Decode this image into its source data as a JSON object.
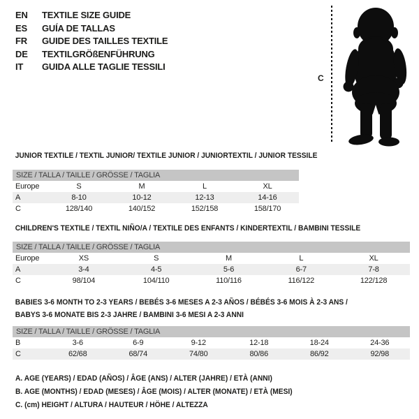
{
  "colors": {
    "background": "#ffffff",
    "text": "#1d1d1b",
    "header_bar_bg": "#c5c5c5",
    "header_bar_text": "#3e3e3e",
    "shaded_row_bg": "#eeeeee",
    "silhouette": "#0d0d0d"
  },
  "languages": [
    {
      "code": "EN",
      "label": "TEXTILE SIZE GUIDE"
    },
    {
      "code": "ES",
      "label": "GUÍA DE TALLAS"
    },
    {
      "code": "FR",
      "label": "GUIDE DES TAILLES TEXTILE"
    },
    {
      "code": "DE",
      "label": "TEXTILGRÖßENFÜHRUNG"
    },
    {
      "code": "IT",
      "label": "GUIDA ALLE TAGLIE TESSILI"
    }
  ],
  "figure": {
    "measure_label": "C"
  },
  "sections": [
    {
      "title_lines": [
        "JUNIOR TEXTILE / TEXTIL JUNIOR/ TEXTILE JUNIOR / JUNIORTEXTIL / JUNIOR TESSILE"
      ],
      "size_header": "SIZE / TALLA / TAILLE / GRÖSSE / TAGLIA",
      "rows": [
        {
          "label": "Europe",
          "values": [
            "S",
            "M",
            "L",
            "XL"
          ],
          "shaded": false
        },
        {
          "label": "A",
          "values": [
            "8-10",
            "10-12",
            "12-13",
            "14-16"
          ],
          "shaded": true
        },
        {
          "label": "C",
          "values": [
            "128/140",
            "140/152",
            "152/158",
            "158/170"
          ],
          "shaded": false
        }
      ]
    },
    {
      "title_lines": [
        "CHILDREN'S TEXTILE / TEXTIL NIÑO/A / TEXTILE DES ENFANTS / KINDERTEXTIL / BAMBINI TESSILE"
      ],
      "size_header": "SIZE / TALLA / TAILLE / GRÖSSE / TAGLIA",
      "rows": [
        {
          "label": "Europe",
          "values": [
            "XS",
            "S",
            "M",
            "L",
            "XL"
          ],
          "shaded": false
        },
        {
          "label": "A",
          "values": [
            "3-4",
            "4-5",
            "5-6",
            "6-7",
            "7-8"
          ],
          "shaded": true
        },
        {
          "label": "C",
          "values": [
            "98/104",
            "104/110",
            "110/116",
            "116/122",
            "122/128"
          ],
          "shaded": false
        }
      ]
    },
    {
      "title_lines": [
        "BABIES 3-6 MONTH TO 2-3 YEARS / BEBÉS 3-6 MESES A 2-3 AÑOS / BÉBÉS 3-6 MOIS À 2-3 ANS /",
        "BABYS 3-6 MONATE BIS 2-3 JAHRE / BAMBINI 3-6 MESI A 2-3 ANNI"
      ],
      "size_header": "SIZE / TALLA / TAILLE / GRÖSSE / TAGLIA",
      "rows": [
        {
          "label": "B",
          "values": [
            "3-6",
            "6-9",
            "9-12",
            "12-18",
            "18-24",
            "24-36"
          ],
          "shaded": false
        },
        {
          "label": "C",
          "values": [
            "62/68",
            "68/74",
            "74/80",
            "80/86",
            "86/92",
            "92/98"
          ],
          "shaded": true
        }
      ]
    }
  ],
  "notes": [
    "A. AGE (YEARS) / EDAD (AÑOS) / ÂGE (ANS) / ALTER (JAHRE) / ETÀ (ANNI)",
    "B. AGE (MONTHS) / EDAD (MESES) / ÂGE (MOIS) / ALTER (MONATE) / ETÀ (MESI)",
    "C. (cm) HEIGHT / ALTURA / HAUTEUR / HÖHE / ALTEZZA"
  ]
}
